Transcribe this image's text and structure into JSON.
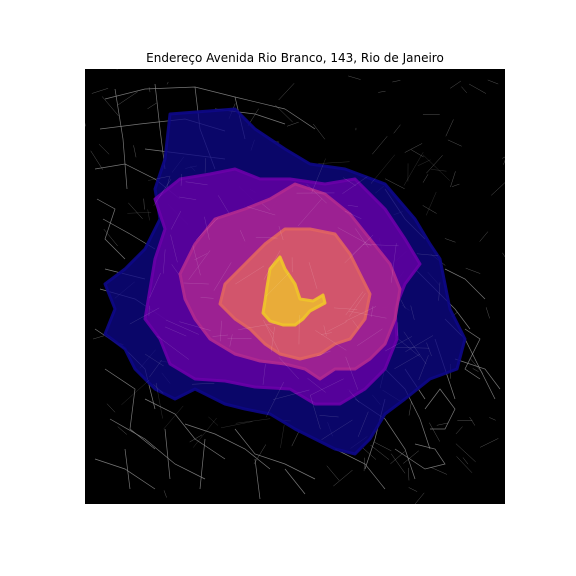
{
  "title": "Endereço Avenida Rio Branco, 143, Rio de Janeiro",
  "map": {
    "background_color": "#000000",
    "street_color": "#8c8c8c",
    "isochrone_colors": [
      "#0d0887",
      "#6a00a8",
      "#b12a90",
      "#e16462",
      "#f0c52a"
    ],
    "isochrone_fill_order": [
      "outermost",
      "outer",
      "middle",
      "inner",
      "innermost"
    ]
  }
}
